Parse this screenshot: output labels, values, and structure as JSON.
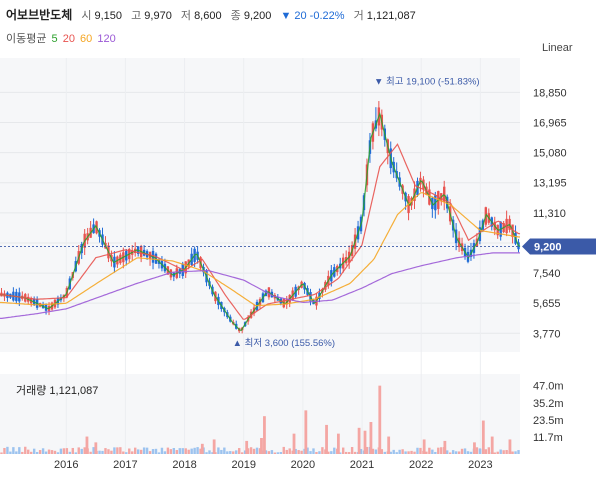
{
  "header": {
    "name": "어보브반도체",
    "open_label": "시",
    "open": "9,150",
    "high_label": "고",
    "high": "9,970",
    "low_label": "저",
    "low": "8,600",
    "close_label": "종",
    "close": "9,200",
    "change": "▼ 20 -0.22%",
    "volume_label": "거",
    "volume": "1,121,087"
  },
  "ma_legend": {
    "title": "이동평균",
    "items": [
      {
        "label": "5",
        "color": "#2ca02c"
      },
      {
        "label": "20",
        "color": "#e8534f"
      },
      {
        "label": "60",
        "color": "#f5a623"
      },
      {
        "label": "120",
        "color": "#9b59d6"
      }
    ]
  },
  "scale_label": "Linear",
  "volume_label": "거래량 1,121,087",
  "colors": {
    "up": "#e8534f",
    "down": "#1f6bd6",
    "vol_up": "#f4a6a3",
    "vol_down": "#9cc3ef",
    "current": "#3b5aa8"
  },
  "chart_data": {
    "type": "candlestick",
    "y_ticks": [
      "18,850",
      "16,965",
      "15,080",
      "13,195",
      "11,310",
      "9,425",
      "7,540",
      "5,655",
      "3,770"
    ],
    "y_tick_values": [
      18850,
      16965,
      15080,
      13195,
      11310,
      9425,
      7540,
      5655,
      3770
    ],
    "ylim": [
      2600,
      21000
    ],
    "vol_ticks": [
      "47.0m",
      "35.2m",
      "23.5m",
      "11.7m"
    ],
    "vol_tick_values": [
      47.0,
      35.2,
      23.5,
      11.7
    ],
    "vol_max": 55,
    "x_ticks": [
      "2016",
      "2017",
      "2018",
      "2019",
      "2020",
      "2021",
      "2022",
      "2023"
    ],
    "x_tick_values": [
      2016,
      2017,
      2018,
      2019,
      2020,
      2021,
      2022,
      2023
    ],
    "xlim": [
      2014.88,
      2023.67
    ],
    "current_price": 9200,
    "current_label": "9,200",
    "max_annotation": {
      "label": "▼ 최고 19,100 (-51.83%)",
      "x": 2021.27,
      "y": 19100
    },
    "min_annotation": {
      "label": "▲ 최저 3,600 (155.56%)",
      "x": 2018.88,
      "y": 3600
    },
    "price_keyframes": [
      [
        2014.9,
        6200
      ],
      [
        2015.3,
        6000
      ],
      [
        2015.7,
        5300
      ],
      [
        2016.0,
        6200
      ],
      [
        2016.3,
        9500
      ],
      [
        2016.5,
        10500
      ],
      [
        2016.8,
        8200
      ],
      [
        2017.2,
        9000
      ],
      [
        2017.5,
        8500
      ],
      [
        2017.8,
        7400
      ],
      [
        2018.0,
        7800
      ],
      [
        2018.2,
        8800
      ],
      [
        2018.5,
        6200
      ],
      [
        2018.8,
        4500
      ],
      [
        2018.95,
        3900
      ],
      [
        2019.1,
        4800
      ],
      [
        2019.4,
        6400
      ],
      [
        2019.7,
        5600
      ],
      [
        2020.0,
        6900
      ],
      [
        2020.2,
        5600
      ],
      [
        2020.5,
        7500
      ],
      [
        2020.8,
        8600
      ],
      [
        2021.0,
        10800
      ],
      [
        2021.15,
        16000
      ],
      [
        2021.3,
        17500
      ],
      [
        2021.5,
        14500
      ],
      [
        2021.8,
        11700
      ],
      [
        2022.0,
        13400
      ],
      [
        2022.2,
        11800
      ],
      [
        2022.4,
        12500
      ],
      [
        2022.6,
        9700
      ],
      [
        2022.8,
        8500
      ],
      [
        2022.95,
        9500
      ],
      [
        2023.1,
        11200
      ],
      [
        2023.3,
        10200
      ],
      [
        2023.5,
        10600
      ],
      [
        2023.65,
        9200
      ]
    ],
    "ma20_keyframes": [
      [
        2014.9,
        6200
      ],
      [
        2015.5,
        5900
      ],
      [
        2016.0,
        6000
      ],
      [
        2016.5,
        8500
      ],
      [
        2017.0,
        9000
      ],
      [
        2017.5,
        8600
      ],
      [
        2018.0,
        7700
      ],
      [
        2018.3,
        8400
      ],
      [
        2018.7,
        6100
      ],
      [
        2019.0,
        4600
      ],
      [
        2019.4,
        5600
      ],
      [
        2019.8,
        5900
      ],
      [
        2020.2,
        6200
      ],
      [
        2020.6,
        7200
      ],
      [
        2021.0,
        9300
      ],
      [
        2021.3,
        14200
      ],
      [
        2021.6,
        15600
      ],
      [
        2021.9,
        13000
      ],
      [
        2022.2,
        12500
      ],
      [
        2022.5,
        11900
      ],
      [
        2022.8,
        9600
      ],
      [
        2023.0,
        10100
      ],
      [
        2023.3,
        10800
      ],
      [
        2023.65,
        10000
      ]
    ],
    "ma60_keyframes": [
      [
        2014.9,
        5700
      ],
      [
        2015.5,
        5550
      ],
      [
        2016.0,
        5650
      ],
      [
        2016.6,
        7100
      ],
      [
        2017.2,
        8500
      ],
      [
        2017.8,
        8300
      ],
      [
        2018.3,
        7700
      ],
      [
        2018.8,
        6500
      ],
      [
        2019.2,
        5500
      ],
      [
        2019.7,
        5600
      ],
      [
        2020.2,
        5900
      ],
      [
        2020.8,
        6900
      ],
      [
        2021.2,
        8400
      ],
      [
        2021.6,
        11200
      ],
      [
        2022.0,
        12600
      ],
      [
        2022.5,
        11800
      ],
      [
        2023.0,
        10200
      ],
      [
        2023.65,
        9800
      ]
    ],
    "ma120_keyframes": [
      [
        2014.9,
        4700
      ],
      [
        2015.5,
        5000
      ],
      [
        2016.0,
        5300
      ],
      [
        2016.6,
        6100
      ],
      [
        2017.2,
        6900
      ],
      [
        2017.8,
        7600
      ],
      [
        2018.4,
        7700
      ],
      [
        2019.0,
        7100
      ],
      [
        2019.5,
        6100
      ],
      [
        2020.0,
        5700
      ],
      [
        2020.5,
        5850
      ],
      [
        2021.0,
        6600
      ],
      [
        2021.5,
        7500
      ],
      [
        2022.0,
        8000
      ],
      [
        2022.6,
        8500
      ],
      [
        2023.2,
        8800
      ],
      [
        2023.65,
        8800
      ]
    ],
    "volume_spikes": [
      [
        2016.35,
        12
      ],
      [
        2016.5,
        8
      ],
      [
        2018.3,
        7
      ],
      [
        2018.5,
        10
      ],
      [
        2019.05,
        9
      ],
      [
        2019.3,
        11
      ],
      [
        2019.35,
        26
      ],
      [
        2019.85,
        14
      ],
      [
        2020.05,
        30
      ],
      [
        2020.4,
        20
      ],
      [
        2020.6,
        14
      ],
      [
        2020.95,
        18
      ],
      [
        2021.05,
        16
      ],
      [
        2021.15,
        22
      ],
      [
        2021.3,
        47
      ],
      [
        2021.45,
        12
      ],
      [
        2022.05,
        10
      ],
      [
        2022.4,
        9
      ],
      [
        2022.9,
        8
      ],
      [
        2023.05,
        23
      ],
      [
        2023.2,
        12
      ],
      [
        2023.5,
        10
      ]
    ]
  }
}
